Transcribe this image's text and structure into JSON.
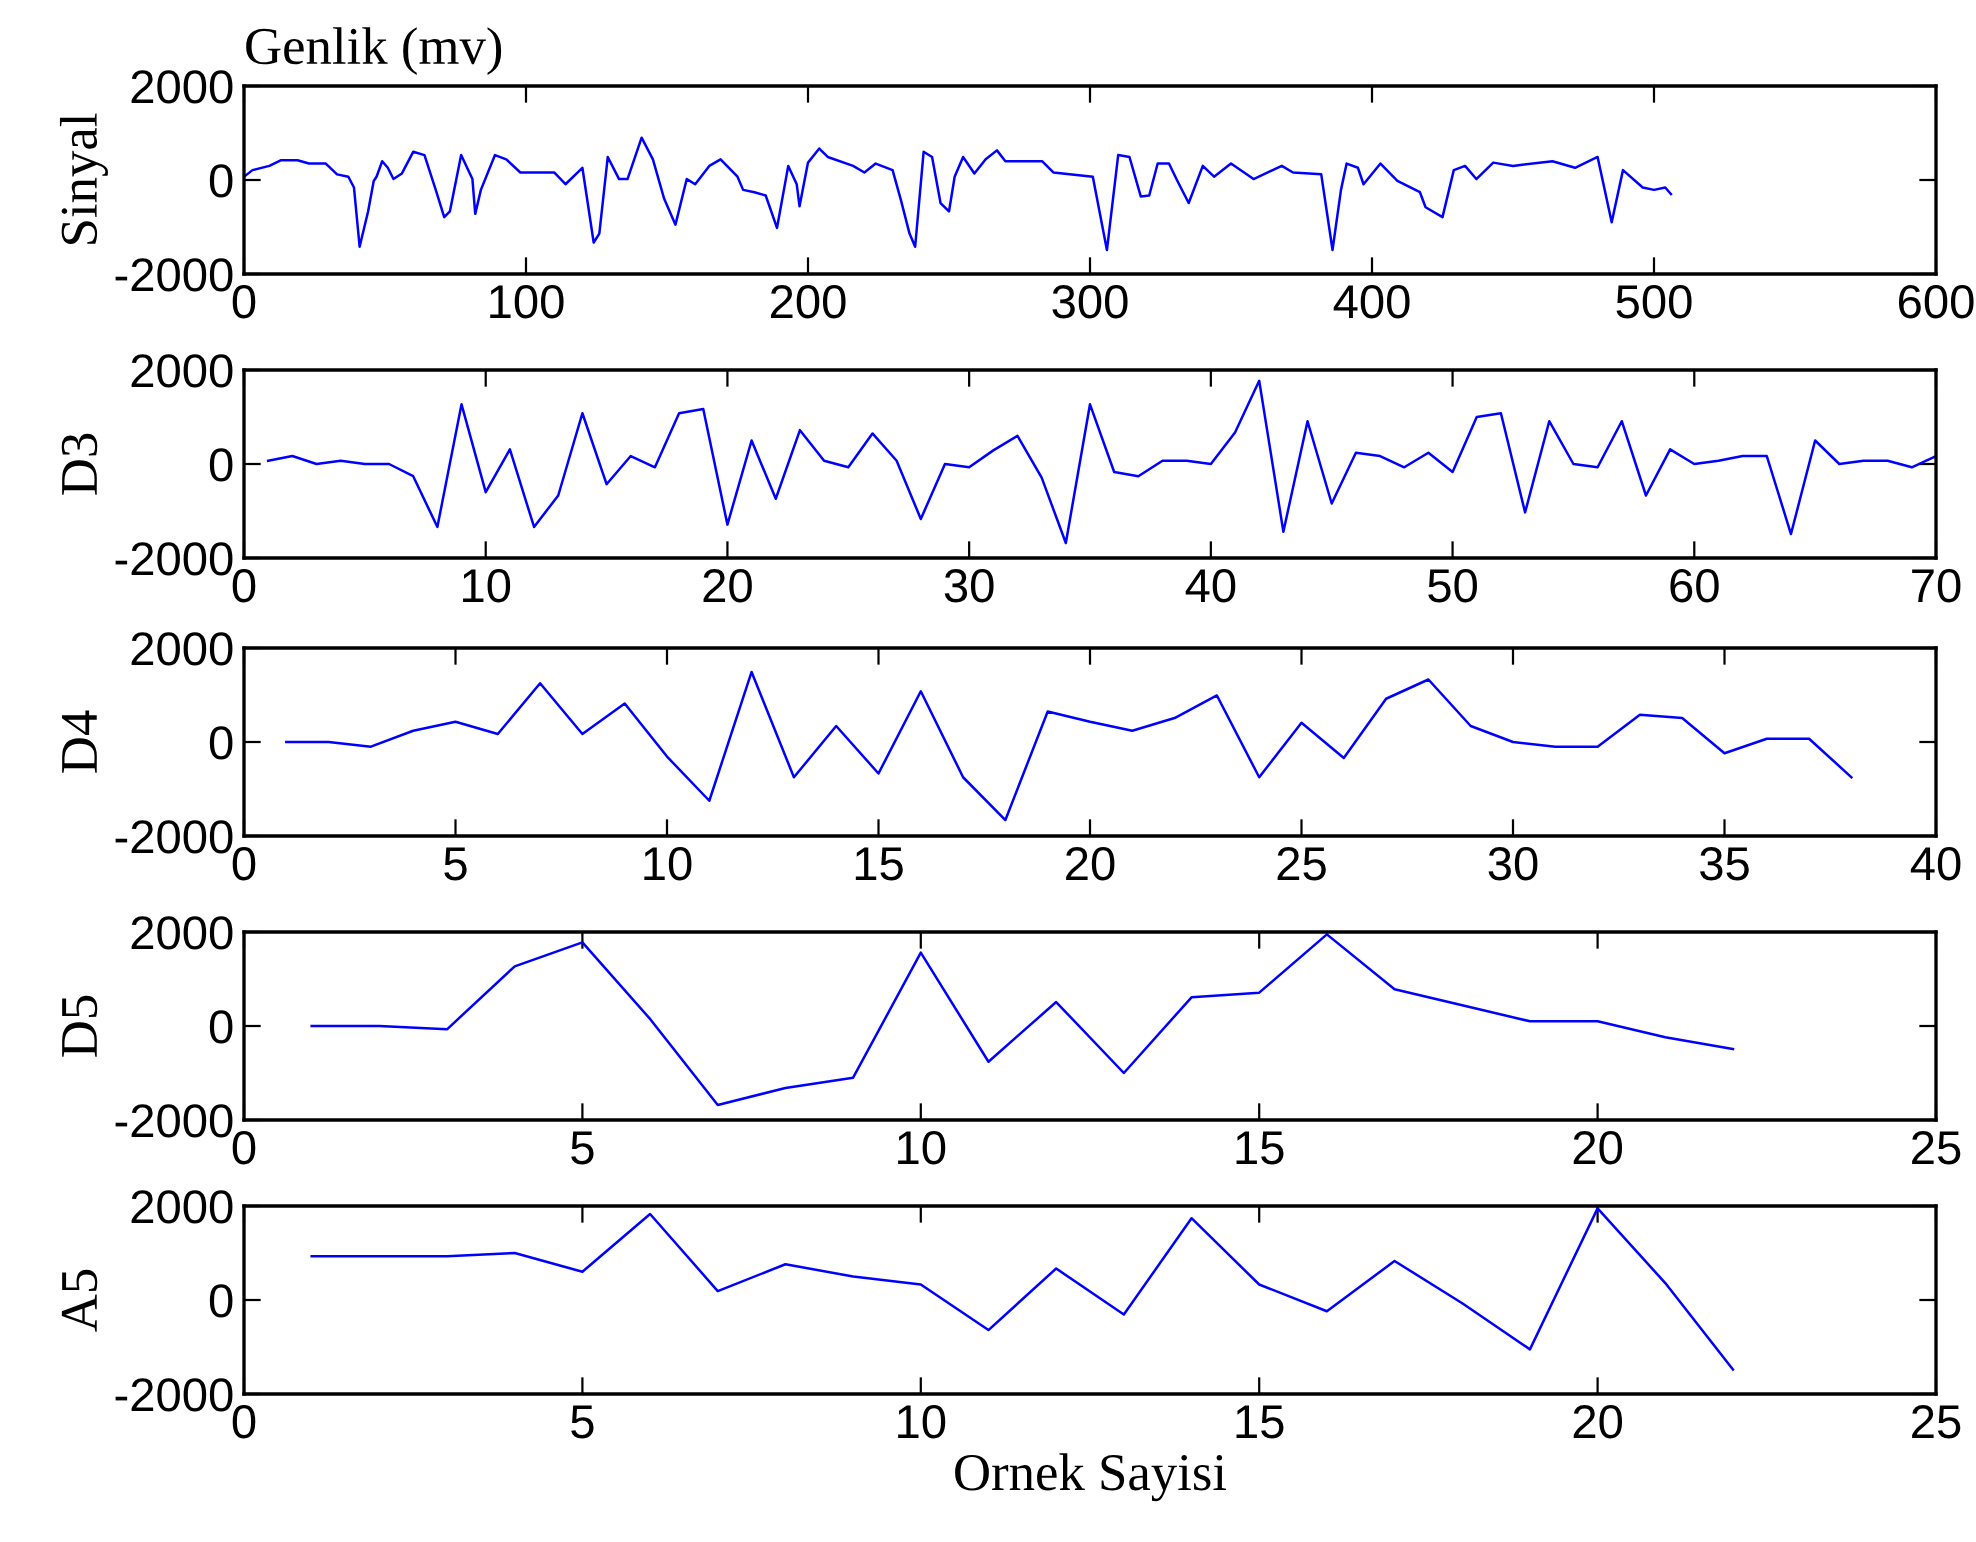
{
  "chart_data": [
    {
      "type": "line",
      "title": "Genlik (mv)",
      "ylabel": "Sinyal",
      "xlim": [
        0,
        600
      ],
      "xticks": [
        0,
        100,
        200,
        300,
        400,
        500,
        600
      ],
      "ylim": [
        -2000,
        2000
      ],
      "yticks": [
        -2000,
        0,
        2000
      ],
      "grid": false,
      "legend": false,
      "series": [
        {
          "color": "#0000ff",
          "x": [
            0,
            3,
            9,
            13,
            19,
            23,
            29,
            33,
            37,
            39,
            41,
            44,
            46,
            47,
            49,
            51,
            53,
            56,
            60,
            64,
            68,
            71,
            73,
            77,
            81,
            82,
            84,
            89,
            93,
            98,
            110,
            114,
            120,
            124,
            126,
            129,
            133,
            136,
            141,
            145,
            149,
            153,
            157,
            160,
            165,
            169,
            175,
            177,
            181,
            185,
            189,
            193,
            196,
            197,
            200,
            204,
            207,
            216,
            220,
            224,
            230,
            233,
            236,
            238,
            241,
            244,
            247,
            250,
            252,
            255,
            259,
            263,
            267,
            270,
            283,
            287,
            301,
            306,
            310,
            314,
            318,
            321,
            324,
            328,
            331,
            335,
            340,
            344,
            350,
            358,
            368,
            372,
            382,
            386,
            389,
            391,
            395,
            397,
            403,
            409,
            417,
            419,
            425,
            429,
            433,
            437,
            443,
            450,
            464,
            472,
            480,
            485,
            489,
            496,
            500,
            504,
            506
          ],
          "values": [
            70,
            210,
            300,
            420,
            420,
            350,
            350,
            120,
            70,
            -160,
            -1420,
            -670,
            -20,
            70,
            400,
            260,
            20,
            140,
            600,
            530,
            -210,
            -790,
            -670,
            530,
            20,
            -720,
            -210,
            530,
            440,
            160,
            160,
            -90,
            260,
            -1330,
            -1140,
            490,
            20,
            20,
            900,
            440,
            -400,
            -950,
            20,
            -90,
            300,
            440,
            70,
            -210,
            -260,
            -330,
            -1020,
            300,
            -90,
            -560,
            370,
            670,
            490,
            300,
            160,
            350,
            210,
            -440,
            -1140,
            -1420,
            600,
            490,
            -490,
            -670,
            70,
            490,
            140,
            440,
            630,
            400,
            400,
            160,
            70,
            -1490,
            530,
            490,
            -350,
            -330,
            350,
            350,
            -20,
            -490,
            300,
            70,
            350,
            20,
            300,
            160,
            120,
            -1490,
            -210,
            350,
            260,
            -90,
            350,
            -20,
            -260,
            -580,
            -790,
            210,
            300,
            20,
            370,
            300,
            400,
            260,
            490,
            -900,
            210,
            -160,
            -210,
            -160,
            -300
          ]
        }
      ]
    },
    {
      "type": "line",
      "ylabel": "D3",
      "xlim": [
        0,
        70
      ],
      "xticks": [
        0,
        10,
        20,
        30,
        40,
        50,
        60,
        70
      ],
      "ylim": [
        -2000,
        2000
      ],
      "yticks": [
        -2000,
        0,
        2000
      ],
      "grid": false,
      "legend": false,
      "series": [
        {
          "color": "#0000ff",
          "x": [
            1,
            2,
            3,
            4,
            5,
            6,
            7,
            8,
            9,
            10,
            11,
            12,
            13,
            14,
            15,
            16,
            17,
            18,
            19,
            20,
            21,
            22,
            23,
            24,
            25,
            26,
            27,
            28,
            29,
            30,
            31,
            32,
            33,
            34,
            35,
            36,
            37,
            38,
            39,
            40,
            41,
            42,
            43,
            44,
            45,
            46,
            47,
            48,
            49,
            50,
            51,
            52,
            53,
            54,
            55,
            56,
            57,
            58,
            59,
            60,
            61,
            62,
            63,
            64,
            65,
            66,
            67,
            68,
            69,
            70
          ],
          "values": [
            70,
            170,
            0,
            70,
            0,
            0,
            -260,
            -1340,
            1270,
            -600,
            310,
            -1340,
            -670,
            1080,
            -430,
            170,
            -70,
            1080,
            1170,
            -1290,
            500,
            -740,
            720,
            70,
            -70,
            650,
            70,
            -1170,
            0,
            -70,
            290,
            600,
            -290,
            -1680,
            1270,
            -170,
            -260,
            70,
            70,
            0,
            670,
            1770,
            -1440,
            910,
            -840,
            240,
            170,
            -70,
            240,
            -170,
            1000,
            1080,
            -1030,
            910,
            0,
            -70,
            910,
            -670,
            310,
            0,
            70,
            170,
            170,
            -1490,
            500,
            0,
            70,
            70,
            -70,
            170
          ]
        }
      ]
    },
    {
      "type": "line",
      "ylabel": "D4",
      "xlim": [
        0,
        40
      ],
      "xticks": [
        0,
        5,
        10,
        15,
        20,
        25,
        30,
        35,
        40
      ],
      "ylim": [
        -2000,
        2000
      ],
      "yticks": [
        -2000,
        0,
        2000
      ],
      "grid": false,
      "legend": false,
      "series": [
        {
          "color": "#0000ff",
          "x": [
            1,
            2,
            3,
            4,
            5,
            6,
            7,
            8,
            9,
            10,
            11,
            12,
            13,
            14,
            15,
            16,
            17,
            18,
            19,
            20,
            21,
            22,
            23,
            24,
            25,
            26,
            27,
            28,
            29,
            30,
            31,
            32,
            33,
            34,
            35,
            36,
            37,
            38
          ],
          "values": [
            0,
            0,
            -100,
            240,
            430,
            170,
            1250,
            170,
            820,
            -310,
            -1250,
            1490,
            -750,
            340,
            -670,
            1080,
            -750,
            -1660,
            650,
            430,
            240,
            510,
            990,
            -750,
            410,
            -340,
            920,
            1330,
            340,
            0,
            -100,
            -100,
            580,
            510,
            -240,
            70,
            70,
            -750
          ]
        }
      ]
    },
    {
      "type": "line",
      "ylabel": "D5",
      "xlim": [
        0,
        25
      ],
      "xticks": [
        0,
        5,
        10,
        15,
        20,
        25
      ],
      "ylim": [
        -2000,
        2000
      ],
      "yticks": [
        -2000,
        0,
        2000
      ],
      "grid": false,
      "legend": false,
      "series": [
        {
          "color": "#0000ff",
          "x": [
            1,
            2,
            3,
            4,
            5,
            6,
            7,
            8,
            9,
            10,
            11,
            12,
            13,
            14,
            15,
            16,
            17,
            18,
            19,
            20,
            21,
            22
          ],
          "values": [
            0,
            0,
            -70,
            1270,
            1780,
            150,
            -1680,
            -1320,
            -1100,
            1560,
            -760,
            510,
            -1000,
            610,
            710,
            1950,
            780,
            440,
            100,
            100,
            -240,
            -490
          ]
        }
      ]
    },
    {
      "type": "line",
      "ylabel": "A5",
      "xlabel": "Ornek Sayisi",
      "xlim": [
        0,
        25
      ],
      "xticks": [
        0,
        5,
        10,
        15,
        20,
        25
      ],
      "ylim": [
        -2000,
        2000
      ],
      "yticks": [
        -2000,
        0,
        2000
      ],
      "grid": false,
      "legend": false,
      "series": [
        {
          "color": "#0000ff",
          "x": [
            1,
            2,
            3,
            4,
            5,
            6,
            7,
            8,
            9,
            10,
            11,
            12,
            13,
            14,
            15,
            16,
            17,
            18,
            19,
            20,
            21,
            22
          ],
          "values": [
            930,
            930,
            930,
            1000,
            600,
            1830,
            190,
            760,
            500,
            330,
            -640,
            670,
            -310,
            1740,
            330,
            -240,
            830,
            -70,
            -1050,
            1950,
            360,
            -1480
          ]
        }
      ]
    }
  ]
}
